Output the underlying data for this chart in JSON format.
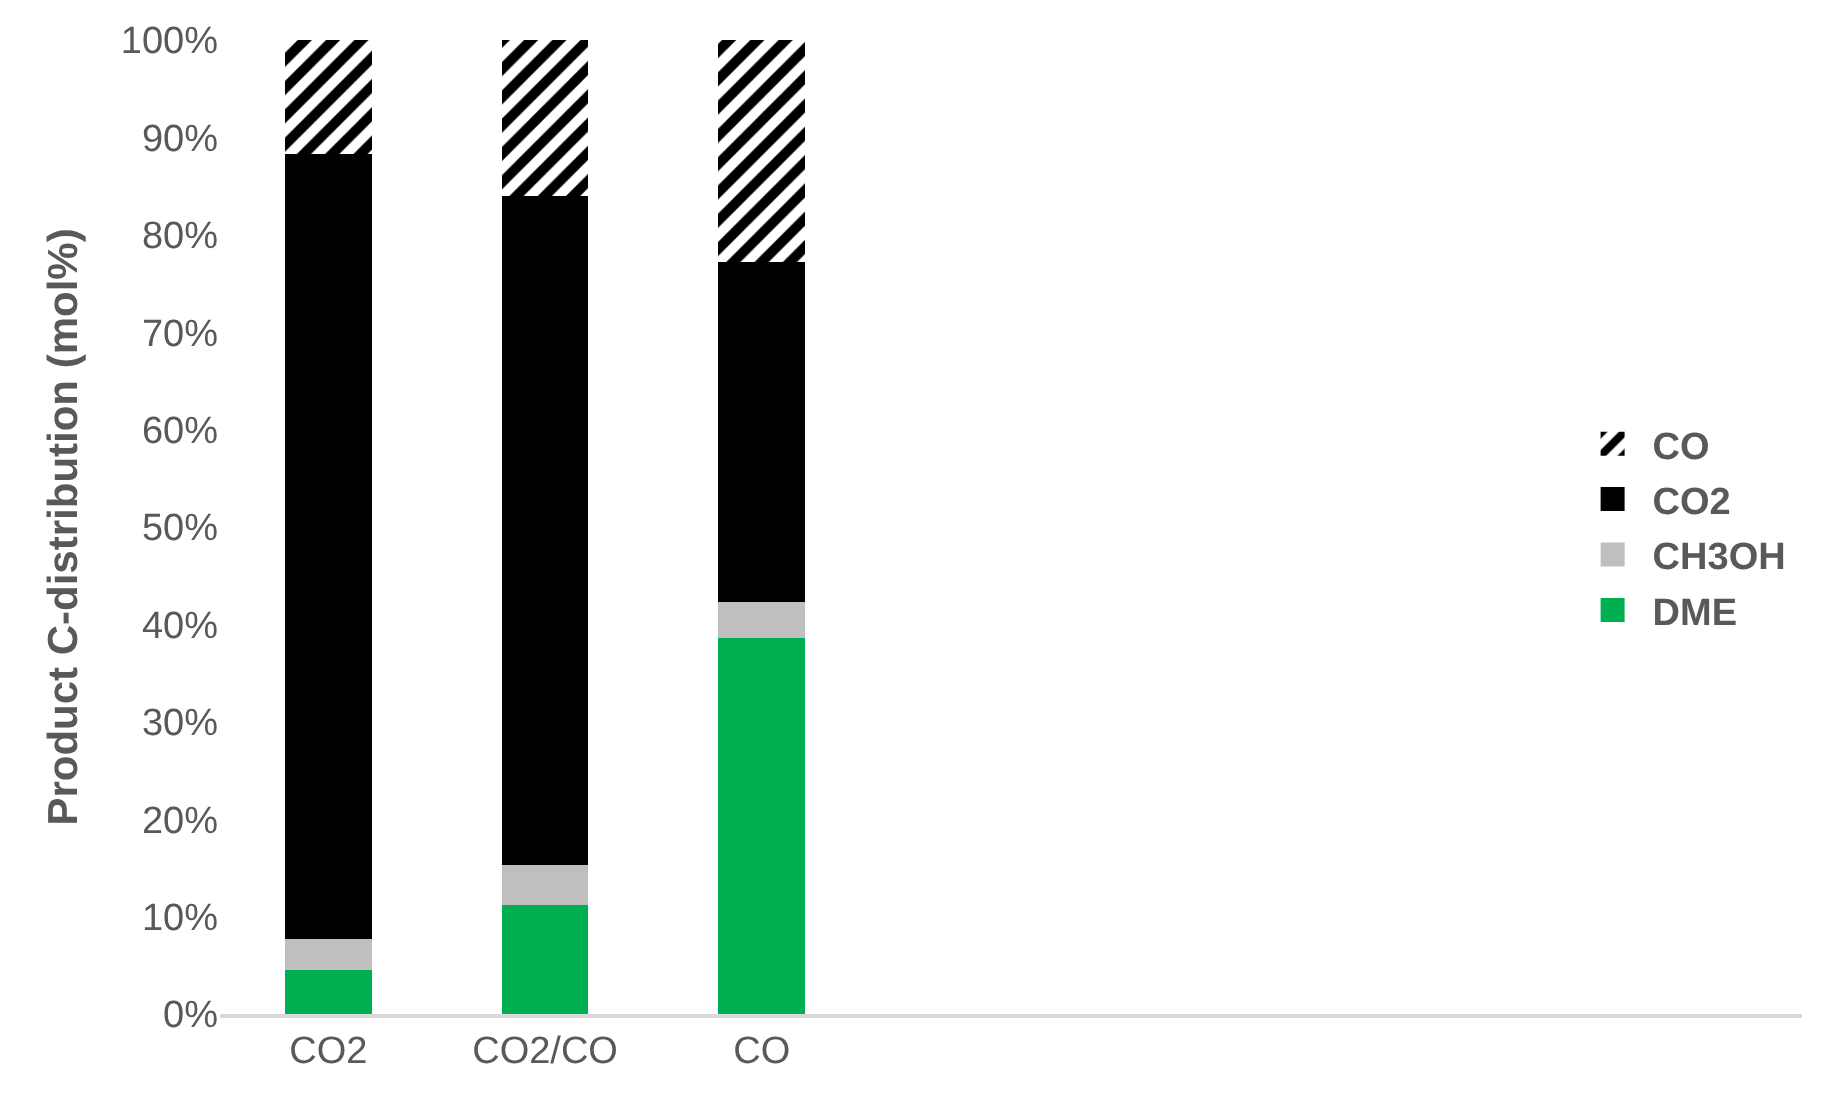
{
  "chart_data": {
    "type": "bar",
    "stacked": true,
    "ylabel": "Product C-distribution (mol%)",
    "categories": [
      "CO2",
      "CO2/CO",
      "CO"
    ],
    "series": [
      {
        "name": "DME",
        "color": "#00b050",
        "values": [
          4.5,
          11.2,
          38.6
        ]
      },
      {
        "name": "CH3OH",
        "color": "#bfbfbf",
        "values": [
          3.2,
          4.1,
          3.7
        ]
      },
      {
        "name": "CO2",
        "color": "#000000",
        "values": [
          80.6,
          68.7,
          34.9
        ]
      },
      {
        "name": "CO",
        "color": "#000000",
        "values": [
          11.7,
          16.0,
          22.8
        ]
      }
    ],
    "ylim": [
      0,
      100
    ],
    "yticks": [
      {
        "value": 0,
        "label": "0%"
      },
      {
        "value": 10,
        "label": "10%"
      },
      {
        "value": 20,
        "label": "20%"
      },
      {
        "value": 30,
        "label": "30%"
      },
      {
        "value": 40,
        "label": "40%"
      },
      {
        "value": 50,
        "label": "50%"
      },
      {
        "value": 60,
        "label": "60%"
      },
      {
        "value": 70,
        "label": "70%"
      },
      {
        "value": 80,
        "label": "80%"
      },
      {
        "value": 90,
        "label": "90%"
      },
      {
        "value": 100,
        "label": "100%"
      }
    ],
    "grid": false,
    "legend": "right"
  }
}
